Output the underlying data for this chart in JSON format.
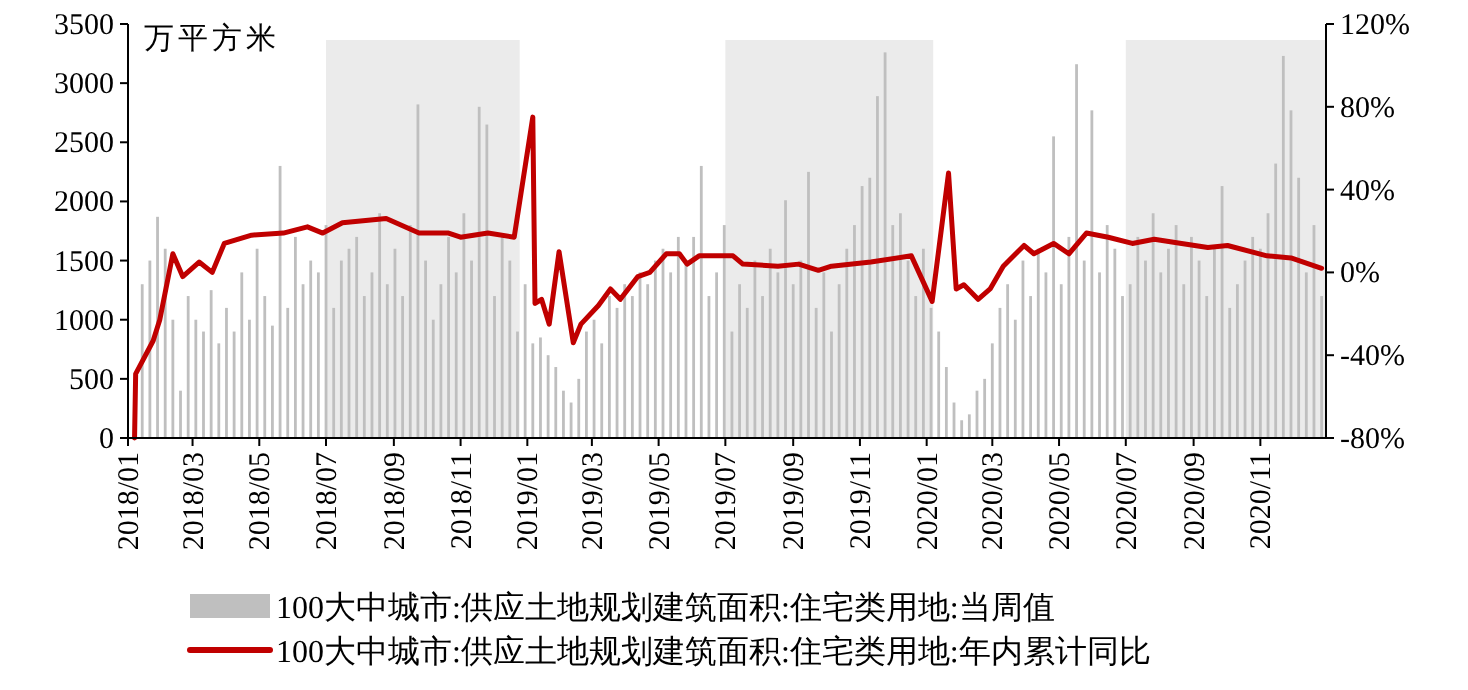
{
  "chart_data": {
    "type": "bar",
    "ylabel": "万平方米",
    "legend": "bottom",
    "grid": false,
    "xlim": [
      "2018-01-01",
      "2020-12-31"
    ],
    "xticks": [
      {
        "value": "2018-01-01",
        "label": "2018/01"
      },
      {
        "value": "2018-03-01",
        "label": "2018/03"
      },
      {
        "value": "2018-05-01",
        "label": "2018/05"
      },
      {
        "value": "2018-07-01",
        "label": "2018/07"
      },
      {
        "value": "2018-09-01",
        "label": "2018/09"
      },
      {
        "value": "2018-11-01",
        "label": "2018/11"
      },
      {
        "value": "2019-01-01",
        "label": "2019/01"
      },
      {
        "value": "2019-03-01",
        "label": "2019/03"
      },
      {
        "value": "2019-05-01",
        "label": "2019/05"
      },
      {
        "value": "2019-07-01",
        "label": "2019/07"
      },
      {
        "value": "2019-09-01",
        "label": "2019/09"
      },
      {
        "value": "2019-11-01",
        "label": "2019/11"
      },
      {
        "value": "2020-01-01",
        "label": "2020/01"
      },
      {
        "value": "2020-03-01",
        "label": "2020/03"
      },
      {
        "value": "2020-05-01",
        "label": "2020/05"
      },
      {
        "value": "2020-07-01",
        "label": "2020/07"
      },
      {
        "value": "2020-09-01",
        "label": "2020/09"
      },
      {
        "value": "2020-11-01",
        "label": "2020/11"
      }
    ],
    "ylim": [
      0,
      3500
    ],
    "yticks": [
      0,
      500,
      1000,
      1500,
      2000,
      2500,
      3000,
      3500
    ],
    "y2lim": [
      -80,
      120
    ],
    "y2ticks": [
      {
        "value": -80,
        "label": "-80%"
      },
      {
        "value": -40,
        "label": "-40%"
      },
      {
        "value": 0,
        "label": "0%"
      },
      {
        "value": 40,
        "label": "40%"
      },
      {
        "value": 80,
        "label": "80%"
      },
      {
        "value": 120,
        "label": "120%"
      }
    ],
    "bands": [
      {
        "axis": "x",
        "from": "2018-07-01",
        "to": "2018-12-25",
        "color": "#ebebeb"
      },
      {
        "axis": "x",
        "from": "2019-07-01",
        "to": "2020-01-07",
        "color": "#ebebeb"
      },
      {
        "axis": "x",
        "from": "2020-07-01",
        "to": "2020-12-31",
        "color": "#ebebeb"
      }
    ],
    "series": [
      {
        "name": "100大中城市:供应土地规划建筑面积:住宅类用地:当周值",
        "color": "#bfbfbf",
        "x": [
          "2018-01-14",
          "2018-01-21",
          "2018-01-28",
          "2018-02-04",
          "2018-02-11",
          "2018-02-18",
          "2018-02-25",
          "2018-03-04",
          "2018-03-11",
          "2018-03-18",
          "2018-03-25",
          "2018-04-01",
          "2018-04-08",
          "2018-04-15",
          "2018-04-22",
          "2018-04-29",
          "2018-05-06",
          "2018-05-13",
          "2018-05-20",
          "2018-05-27",
          "2018-06-03",
          "2018-06-10",
          "2018-06-17",
          "2018-06-24",
          "2018-07-01",
          "2018-07-08",
          "2018-07-15",
          "2018-07-22",
          "2018-07-29",
          "2018-08-05",
          "2018-08-12",
          "2018-08-19",
          "2018-08-26",
          "2018-09-02",
          "2018-09-09",
          "2018-09-16",
          "2018-09-23",
          "2018-09-30",
          "2018-10-07",
          "2018-10-14",
          "2018-10-21",
          "2018-10-28",
          "2018-11-04",
          "2018-11-11",
          "2018-11-18",
          "2018-11-25",
          "2018-12-02",
          "2018-12-09",
          "2018-12-16",
          "2018-12-23",
          "2018-12-30",
          "2019-01-06",
          "2019-01-13",
          "2019-01-20",
          "2019-01-27",
          "2019-02-03",
          "2019-02-10",
          "2019-02-17",
          "2019-02-24",
          "2019-03-03",
          "2019-03-10",
          "2019-03-17",
          "2019-03-24",
          "2019-03-31",
          "2019-04-07",
          "2019-04-14",
          "2019-04-21",
          "2019-04-28",
          "2019-05-05",
          "2019-05-12",
          "2019-05-19",
          "2019-05-26",
          "2019-06-02",
          "2019-06-09",
          "2019-06-16",
          "2019-06-23",
          "2019-06-30",
          "2019-07-07",
          "2019-07-14",
          "2019-07-21",
          "2019-07-28",
          "2019-08-04",
          "2019-08-11",
          "2019-08-18",
          "2019-08-25",
          "2019-09-01",
          "2019-09-08",
          "2019-09-15",
          "2019-09-22",
          "2019-09-29",
          "2019-10-06",
          "2019-10-13",
          "2019-10-20",
          "2019-10-27",
          "2019-11-03",
          "2019-11-10",
          "2019-11-17",
          "2019-11-24",
          "2019-12-01",
          "2019-12-08",
          "2019-12-15",
          "2019-12-22",
          "2019-12-29",
          "2020-01-05",
          "2020-01-12",
          "2020-01-19",
          "2020-01-26",
          "2020-02-02",
          "2020-02-09",
          "2020-02-16",
          "2020-02-23",
          "2020-03-01",
          "2020-03-08",
          "2020-03-15",
          "2020-03-22",
          "2020-03-29",
          "2020-04-05",
          "2020-04-12",
          "2020-04-19",
          "2020-04-26",
          "2020-05-03",
          "2020-05-10",
          "2020-05-17",
          "2020-05-24",
          "2020-05-31",
          "2020-06-07",
          "2020-06-14",
          "2020-06-21",
          "2020-06-28",
          "2020-07-05",
          "2020-07-12",
          "2020-07-19",
          "2020-07-26",
          "2020-08-02",
          "2020-08-09",
          "2020-08-16",
          "2020-08-23",
          "2020-08-30",
          "2020-09-06",
          "2020-09-13",
          "2020-09-20",
          "2020-09-27",
          "2020-10-04",
          "2020-10-11",
          "2020-10-18",
          "2020-10-25",
          "2020-11-01",
          "2020-11-08",
          "2020-11-15",
          "2020-11-22",
          "2020-11-29",
          "2020-12-06",
          "2020-12-13",
          "2020-12-20",
          "2020-12-27"
        ],
        "values": [
          1300,
          1500,
          1870,
          1600,
          1000,
          400,
          1200,
          1000,
          900,
          1250,
          800,
          1100,
          900,
          1400,
          1000,
          1600,
          1200,
          950,
          2300,
          1100,
          1700,
          1300,
          1500,
          1400,
          1800,
          1100,
          1500,
          1600,
          1700,
          1200,
          1400,
          1900,
          1300,
          1600,
          1200,
          1800,
          2820,
          1500,
          1000,
          1300,
          1700,
          1400,
          1900,
          1500,
          2800,
          2650,
          1200,
          1700,
          1500,
          900,
          1300,
          800,
          850,
          700,
          600,
          400,
          300,
          500,
          900,
          1000,
          800,
          1200,
          1100,
          1300,
          1200,
          1400,
          1300,
          1500,
          1600,
          1400,
          1700,
          1500,
          1700,
          2300,
          1200,
          1400,
          1800,
          900,
          1300,
          1100,
          1500,
          1200,
          1600,
          1400,
          2010,
          1300,
          1500,
          2250,
          1100,
          1400,
          900,
          1300,
          1600,
          1800,
          2130,
          2200,
          2890,
          3260,
          1800,
          1900,
          1500,
          1200,
          1600,
          1100,
          900,
          600,
          300,
          150,
          200,
          400,
          500,
          800,
          1100,
          1300,
          1000,
          1500,
          1200,
          1600,
          1400,
          2550,
          1300,
          1700,
          3160,
          1500,
          2770,
          1400,
          1800,
          1600,
          1200,
          1300,
          1700,
          1500,
          1900,
          1400,
          1600,
          1800,
          1300,
          1700,
          1500,
          1200,
          1600,
          2130,
          1100,
          1300,
          1500,
          1700,
          1600,
          1900,
          2320,
          3230,
          2770,
          2200,
          1400,
          1800,
          1200
        ]
      },
      {
        "name": "100大中城市:供应土地规划建筑面积:住宅类用地:年内累计同比",
        "type": "line",
        "axis": "y2",
        "color": "#c00000",
        "x": [
          "2018-01-07",
          "2018-01-08",
          "2018-01-24",
          "2018-01-30",
          "2018-02-11",
          "2018-02-20",
          "2018-03-07",
          "2018-03-19",
          "2018-03-30",
          "2018-04-24",
          "2018-05-23",
          "2018-06-14",
          "2018-06-28",
          "2018-07-16",
          "2018-08-25",
          "2018-09-24",
          "2018-10-21",
          "2018-11-01",
          "2018-11-26",
          "2018-12-20",
          "2019-01-06",
          "2019-01-08",
          "2019-01-14",
          "2019-01-21",
          "2019-01-30",
          "2019-02-12",
          "2019-02-19",
          "2019-03-07",
          "2019-03-18",
          "2019-03-27",
          "2019-04-12",
          "2019-04-23",
          "2019-05-08",
          "2019-05-20",
          "2019-05-27",
          "2019-06-07",
          "2019-07-08",
          "2019-07-17",
          "2019-08-18",
          "2019-09-06",
          "2019-09-24",
          "2019-10-06",
          "2019-11-11",
          "2019-12-18",
          "2020-01-06",
          "2020-01-21",
          "2020-01-28",
          "2020-02-04",
          "2020-02-17",
          "2020-02-28",
          "2020-03-11",
          "2020-03-30",
          "2020-04-08",
          "2020-04-26",
          "2020-05-10",
          "2020-05-26",
          "2020-06-15",
          "2020-07-07",
          "2020-07-27",
          "2020-08-21",
          "2020-09-14",
          "2020-10-02",
          "2020-11-07",
          "2020-11-29",
          "2020-12-27"
        ],
        "values": [
          -80,
          -49,
          -33,
          -23,
          9,
          -2,
          5,
          0,
          14,
          18,
          19,
          22,
          19,
          24,
          26,
          19,
          19,
          17,
          19,
          17,
          75,
          -15,
          -13,
          -25,
          10,
          -34,
          -25,
          -16,
          -8,
          -13,
          -2,
          0,
          9,
          9,
          4,
          8,
          8,
          4,
          3,
          4,
          1,
          3,
          5,
          8,
          -14,
          48,
          -8,
          -6,
          -13,
          -8,
          3,
          13,
          9,
          14,
          9,
          19,
          17,
          14,
          16,
          14,
          12,
          13,
          8,
          7,
          2
        ]
      }
    ]
  }
}
